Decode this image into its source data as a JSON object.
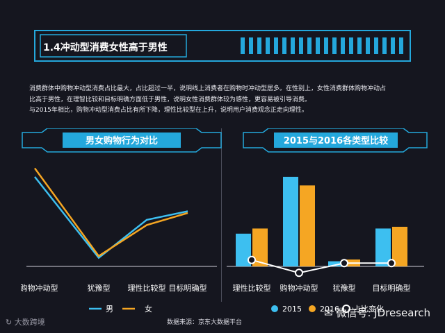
{
  "title": "1.4冲动型消费女性高于男性",
  "description": [
    "消费群体中购物冲动型消费占比最大，占比超过一半，说明线上消费者在购物时冲动型居多。在性别上，女性消费群体购物冲动占",
    "比高于男性，在理智比较和目标明确方面低于男性，说明女性消费群体较为感性，更容易被引导消费。",
    "与2015年相比，购物冲动型消费占比有所下降，理性比较型在上升，说明用户消费观念正走向理性。"
  ],
  "source": "数据来源：京东大数据平台",
  "logo_text": "大数跨境",
  "watermark": "微信号: JDresearch",
  "colors": {
    "blue": "#3dbff0",
    "orange": "#f5a623",
    "background": "#15161f",
    "banner": "#24a8dc"
  },
  "chart_data": [
    {
      "type": "line",
      "title": "男女购物行为对比",
      "categories": [
        "购物冲动型",
        "犹豫型",
        "理性比较型",
        "目标明确型"
      ],
      "series": [
        {
          "name": "男",
          "color": "#3dbff0",
          "values": [
            52,
            5,
            27,
            32
          ]
        },
        {
          "name": "女",
          "color": "#f5a623",
          "values": [
            57,
            6,
            24,
            31
          ]
        }
      ],
      "ylim": [
        0,
        60
      ],
      "legend": "bottom"
    },
    {
      "type": "bar",
      "title": "2015与2016各类型比较",
      "categories": [
        "理性比较型",
        "购物冲动型",
        "犹豫型",
        "目标明确型"
      ],
      "series": [
        {
          "name": "2015",
          "color": "#3dbff0",
          "values": [
            19,
            52,
            3,
            22
          ]
        },
        {
          "name": "2016",
          "color": "#f5a623",
          "values": [
            22,
            47,
            4,
            23
          ]
        }
      ],
      "line_series": {
        "name": "占比变化",
        "values": [
          3,
          -5,
          1,
          1
        ]
      },
      "ylim": [
        0,
        60
      ],
      "line_ylim": [
        -10,
        20
      ],
      "legend": "bottom"
    }
  ]
}
